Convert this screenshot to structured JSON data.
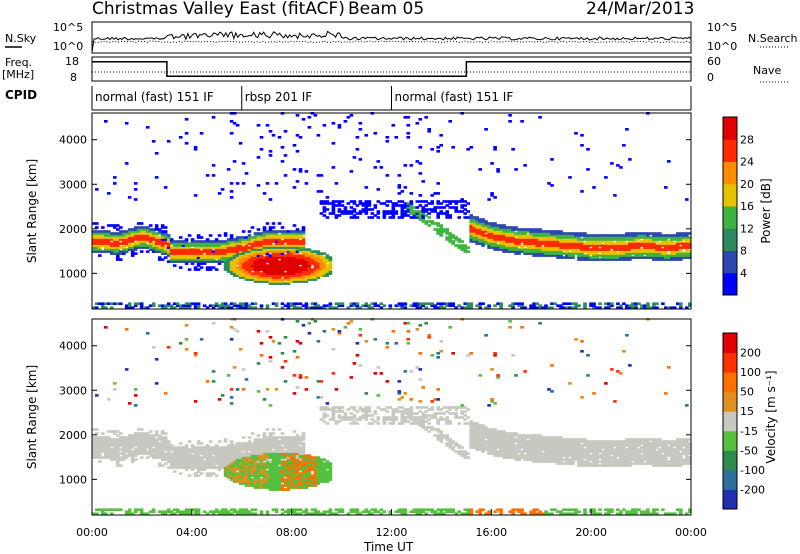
{
  "header": {
    "station": "Christmas Valley East (fitACF)",
    "beam": "Beam 05",
    "date": "24/Mar/2013"
  },
  "labels": {
    "nsky": "N.Sky",
    "nsearch": "N.Search",
    "freq": "Freq.",
    "freq_unit": "[MHz]",
    "cpid": "CPID",
    "nave": "Nave"
  },
  "cpid_segments": [
    {
      "label": "normal (fast) 151 IF",
      "start": 0,
      "end": 6
    },
    {
      "label": "rbsp 201 IF",
      "start": 6,
      "end": 12
    },
    {
      "label": "normal (fast) 151 IF",
      "start": 12,
      "end": 24
    }
  ],
  "noise_panel": {
    "left_ticks": [
      "10^5",
      "10^0"
    ],
    "right_ticks": [
      "10^5",
      "10^0"
    ]
  },
  "freq_panel": {
    "left_ticks": [
      "18",
      "8"
    ],
    "right_ticks": [
      "60",
      "0"
    ],
    "freq_steps": [
      {
        "t": 0,
        "f": 16
      },
      {
        "t": 3,
        "f": 10
      },
      {
        "t": 15,
        "f": 16
      },
      {
        "t": 24,
        "f": 16
      }
    ]
  },
  "chart_data": [
    {
      "type": "heatmap",
      "panel": "power",
      "ylabel": "Slant Range [km]",
      "yticks": [
        1000,
        2000,
        3000,
        4000
      ],
      "ylim": [
        200,
        4600
      ],
      "xlim": [
        0,
        24
      ],
      "colorbar": {
        "label": "Power [dB]",
        "ticks": [
          "4",
          "8",
          "12",
          "16",
          "20",
          "24",
          "28"
        ],
        "colors": [
          "#0000ff",
          "#2c48b0",
          "#2b8a60",
          "#3fb33f",
          "#e6c200",
          "#ff8c00",
          "#ff2a00",
          "#e00000"
        ]
      },
      "features": [
        {
          "name": "band",
          "t": [
            0,
            1,
            2,
            3,
            3.1,
            4,
            5,
            6,
            7,
            8
          ],
          "r": [
            1700,
            1650,
            1800,
            1600,
            1450,
            1450,
            1450,
            1550,
            1700,
            1700
          ]
        },
        {
          "name": "blob",
          "t0": 5,
          "t1": 9.5,
          "r": 1150
        },
        {
          "name": "late_band",
          "t": [
            15,
            16,
            17,
            18,
            19,
            20,
            21,
            22,
            23,
            24
          ],
          "r": [
            2000,
            1800,
            1700,
            1650,
            1600,
            1550,
            1550,
            1600,
            1550,
            1600
          ]
        }
      ]
    },
    {
      "type": "heatmap",
      "panel": "velocity",
      "ylabel": "Slant Range [km]",
      "yticks": [
        1000,
        2000,
        3000,
        4000
      ],
      "ylim": [
        200,
        4600
      ],
      "xlim": [
        0,
        24
      ],
      "xlabel": "Time UT",
      "xticks": [
        "00:00",
        "04:00",
        "08:00",
        "12:00",
        "16:00",
        "20:00",
        "00:00"
      ],
      "colorbar": {
        "label": "Velocity [m s⁻¹]",
        "ticks": [
          "200",
          "100",
          "50",
          "15",
          "-15",
          "-50",
          "-100",
          "-200"
        ],
        "colors": [
          "#1f2fb0",
          "#2c6e9e",
          "#2f8a50",
          "#55c040",
          "#c8c8c0",
          "#e09020",
          "#ff7000",
          "#ff3000",
          "#e00000"
        ]
      }
    }
  ]
}
